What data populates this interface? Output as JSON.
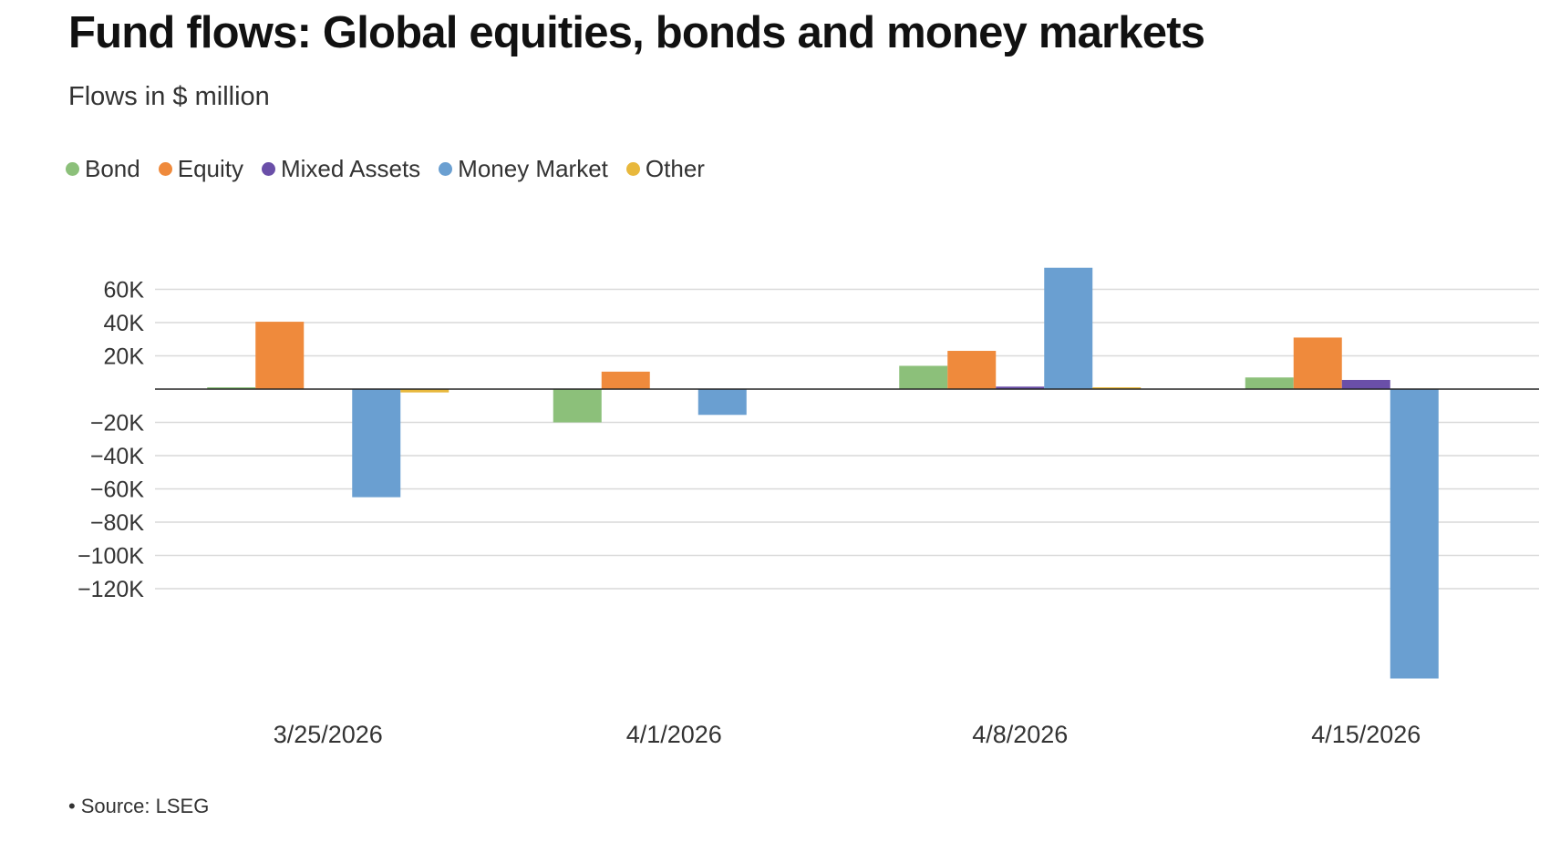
{
  "chart_data": {
    "type": "bar",
    "title": "Fund flows: Global equities, bonds and money markets",
    "subtitle": "Flows in $ million",
    "categories": [
      "3/25/2026",
      "4/1/2026",
      "4/8/2026",
      "4/15/2026"
    ],
    "series": [
      {
        "name": "Bond",
        "color": "#8cc07a",
        "values": [
          800,
          -20000,
          14000,
          7000
        ]
      },
      {
        "name": "Equity",
        "color": "#ef8a3c",
        "values": [
          40500,
          10500,
          23000,
          31000
        ]
      },
      {
        "name": "Mixed Assets",
        "color": "#6a4fa8",
        "values": [
          0,
          0,
          1500,
          5500
        ]
      },
      {
        "name": "Money Market",
        "color": "#6a9fd1",
        "values": [
          -65000,
          -15500,
          73000,
          -174000
        ]
      },
      {
        "name": "Other",
        "color": "#e8b83c",
        "values": [
          -2000,
          0,
          500,
          0
        ]
      }
    ],
    "yticks": [
      60000,
      40000,
      20000,
      0,
      -20000,
      -40000,
      -60000,
      -80000,
      -100000,
      -120000
    ],
    "ytick_labels": [
      "60K",
      "40K",
      "20K",
      "",
      "−20K",
      "−40K",
      "−60K",
      "−80K",
      "−100K",
      "−120K"
    ],
    "ylim": [
      -180000,
      73000
    ],
    "grid": true,
    "legend_position": "top-left",
    "source": "Source: LSEG"
  }
}
